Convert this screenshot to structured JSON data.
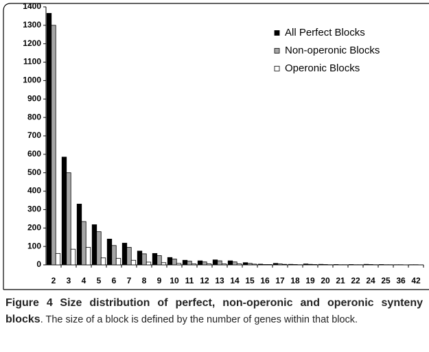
{
  "chart_data": {
    "type": "bar",
    "categories": [
      "2",
      "3",
      "4",
      "5",
      "6",
      "7",
      "8",
      "9",
      "10",
      "11",
      "12",
      "13",
      "14",
      "15",
      "16",
      "17",
      "18",
      "19",
      "20",
      "21",
      "22",
      "24",
      "25",
      "36",
      "42"
    ],
    "series": [
      {
        "name": "All Perfect Blocks",
        "color": "#000000",
        "values": [
          1365,
          585,
          330,
          218,
          140,
          118,
          75,
          62,
          40,
          25,
          22,
          27,
          22,
          12,
          4,
          8,
          3,
          5,
          3,
          2,
          2,
          3,
          2,
          1,
          1
        ]
      },
      {
        "name": "Non-operonic Blocks",
        "color": "#a6a6a6",
        "values": [
          1300,
          500,
          235,
          180,
          105,
          95,
          60,
          50,
          32,
          20,
          16,
          22,
          16,
          8,
          2,
          5,
          2,
          3,
          2,
          1,
          1,
          2,
          1,
          1,
          1
        ]
      },
      {
        "name": "Operonic Blocks",
        "color": "#ffffff",
        "values": [
          62,
          85,
          95,
          38,
          35,
          25,
          15,
          12,
          8,
          5,
          6,
          5,
          6,
          4,
          2,
          3,
          1,
          2,
          1,
          1,
          1,
          1,
          1,
          0,
          0
        ]
      }
    ],
    "ylim": [
      0,
      1400
    ],
    "yticks": [
      0,
      100,
      200,
      300,
      400,
      500,
      600,
      700,
      800,
      900,
      1000,
      1100,
      1200,
      1300,
      1400
    ],
    "legend": "upper right",
    "grid": false
  },
  "caption": {
    "label": "Figure 4",
    "title": "Size distribution of perfect, non-operonic and operonic synteny blocks",
    "text": ". The size of a block is defined by the number of genes within that block."
  }
}
